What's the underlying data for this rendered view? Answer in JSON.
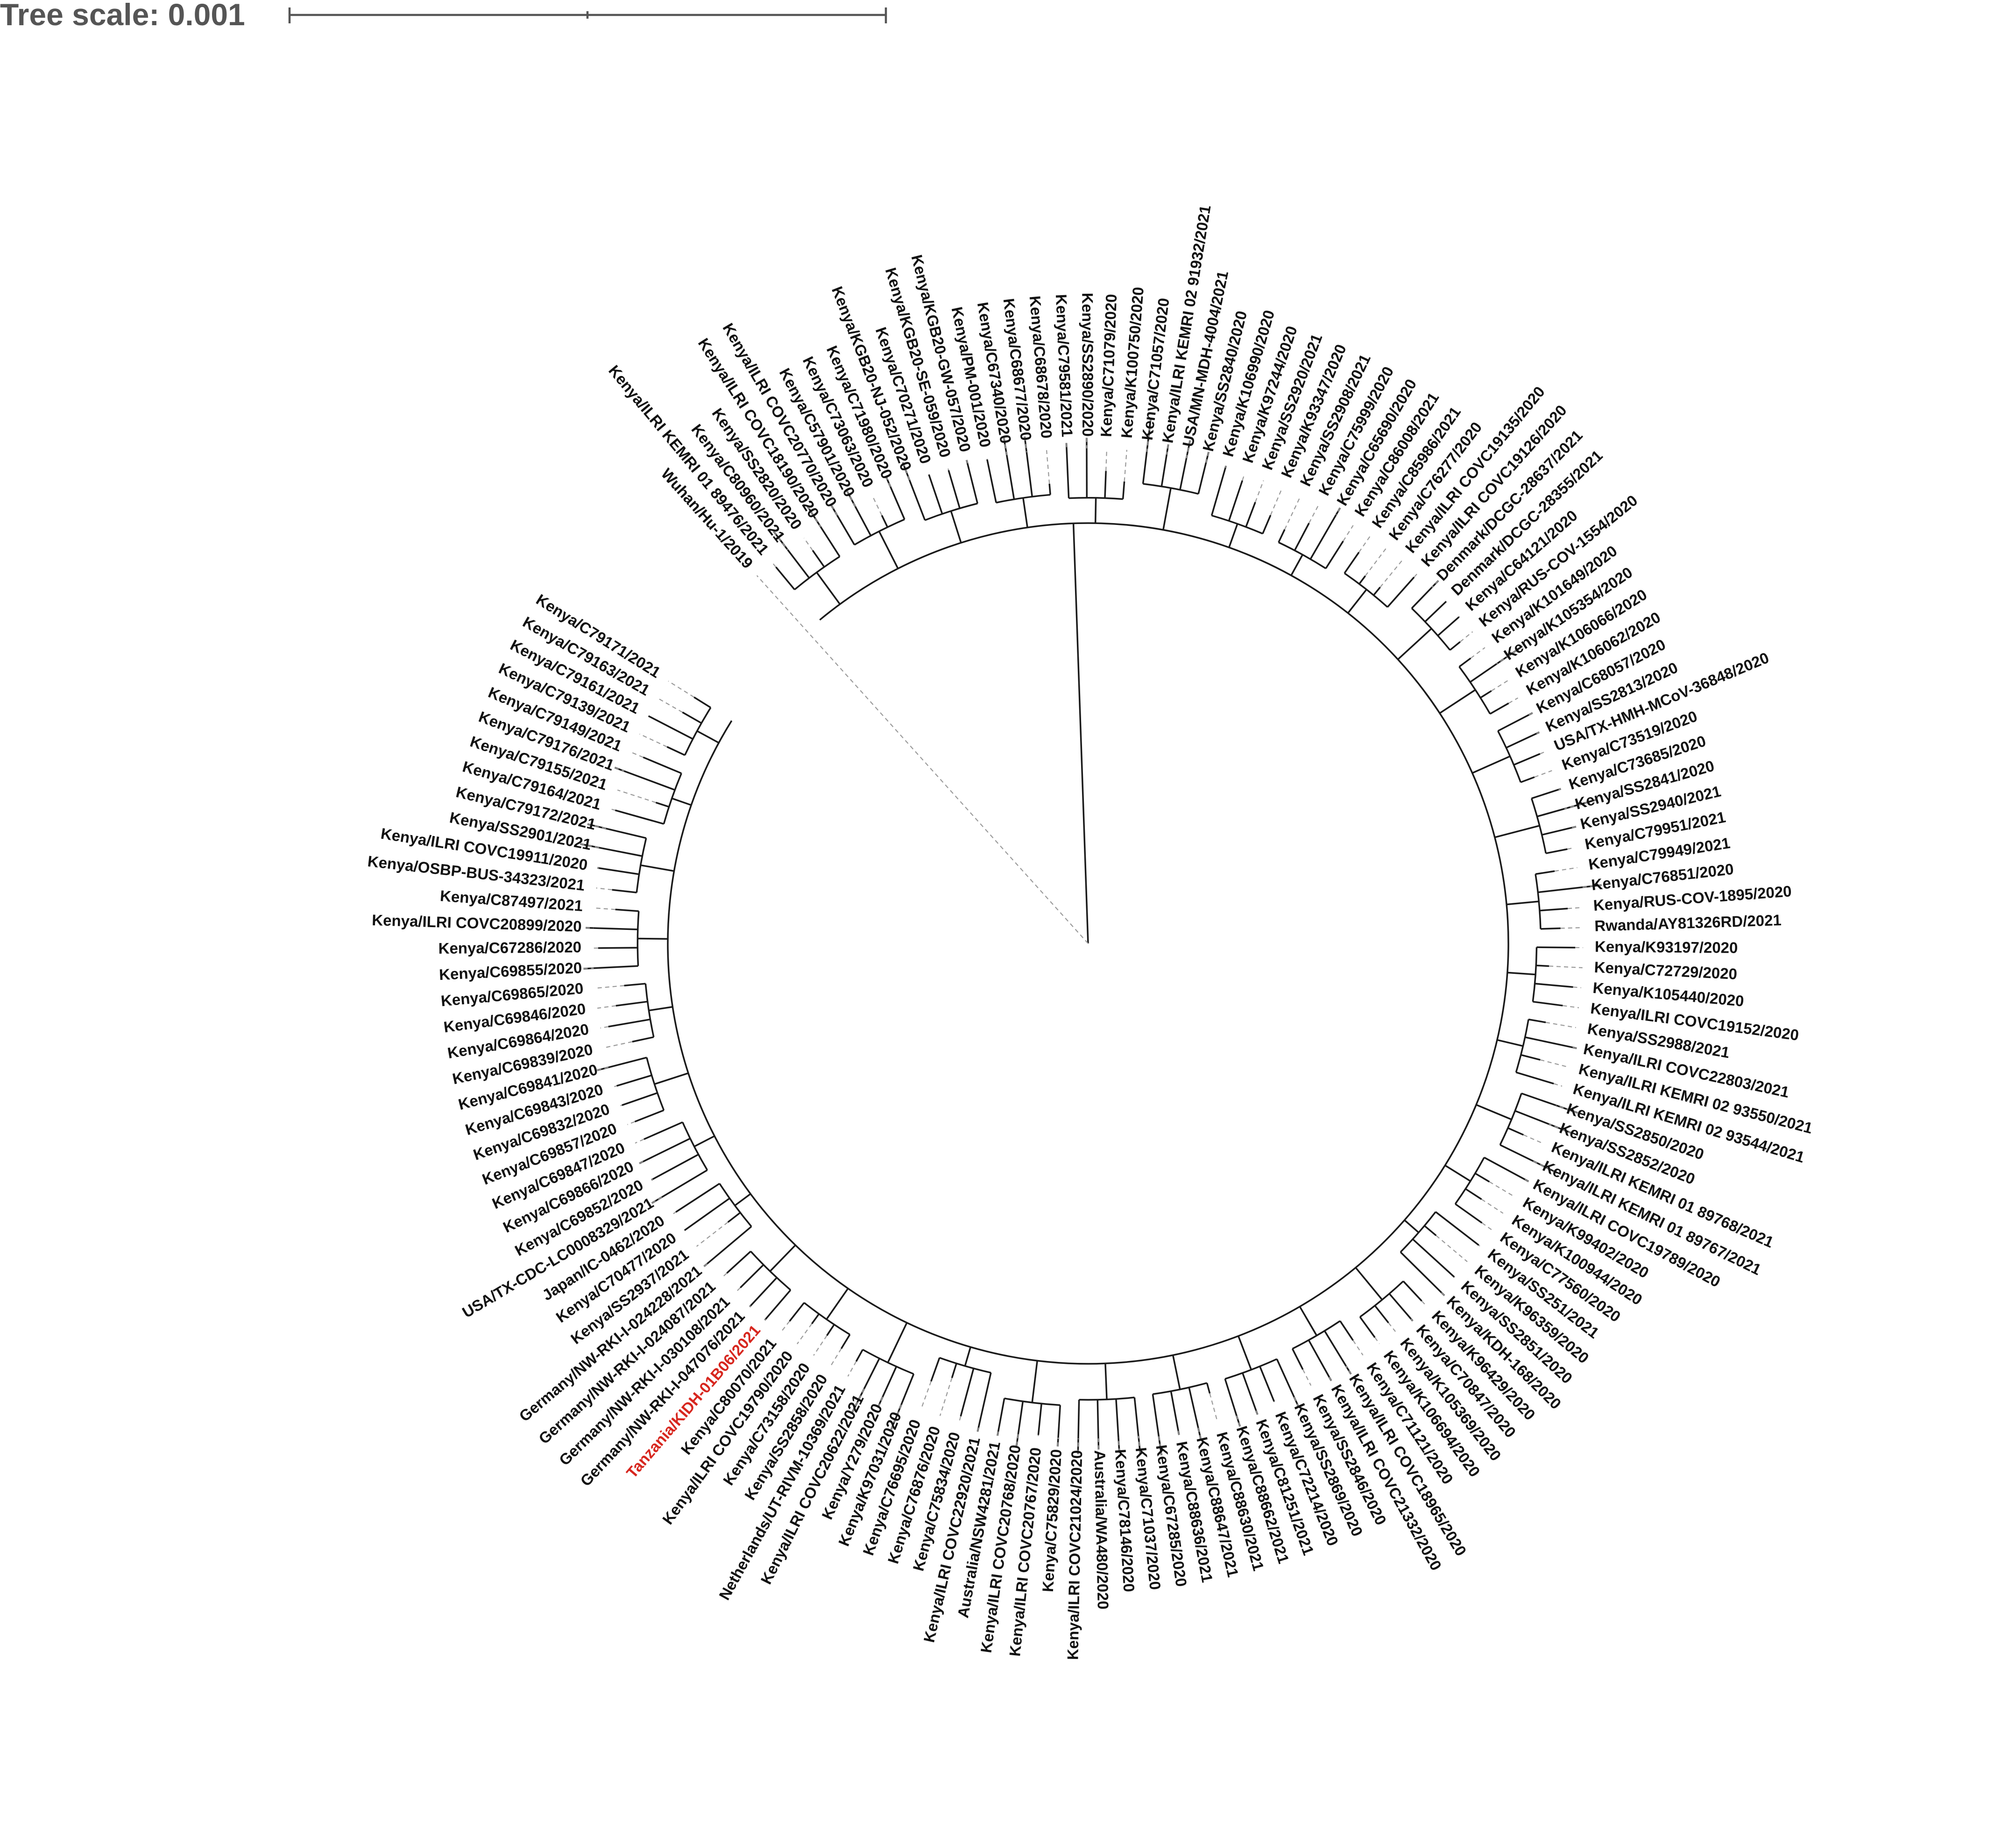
{
  "tree_scale": {
    "label": "Tree scale: 0.001",
    "value": 0.001
  },
  "highlight_color": "#d7261e",
  "highlighted_leaf": "Tanzania/KIDH-01B06/2021",
  "leaves": [
    "Wuhan/Hu-1/2019",
    "Kenya/ILRI KEMRI 01 89476/2021",
    "Kenya/C80960/2021",
    "Kenya/SS2820/2020",
    "Kenya/ILRI COVC18190/2020",
    "Kenya/ILRI COVC20770/2020",
    "Kenya/C57901/2020",
    "Kenya/C73063/2020",
    "Kenya/C71980/2020",
    "Kenya/KGB20-NJ-052/2020",
    "Kenya/C70271/2020",
    "Kenya/KGB20-SE-059/2020",
    "Kenya/KGB20-GW-057/2020",
    "Kenya/PM-001/2020",
    "Kenya/C67340/2020",
    "Kenya/C68677/2020",
    "Kenya/C68678/2020",
    "Kenya/C79581/2021",
    "Kenya/SS2890/2020",
    "Kenya/C71079/2020",
    "Kenya/K100750/2020",
    "Kenya/C71057/2020",
    "Kenya/ILRI KEMRI 02 91932/2021",
    "USA/MN-MDH-4004/2021",
    "Kenya/SS2840/2020",
    "Kenya/K106990/2020",
    "Kenya/K97244/2020",
    "Kenya/SS2920/2021",
    "Kenya/K93347/2020",
    "Kenya/SS2908/2021",
    "Kenya/C75999/2020",
    "Kenya/C65690/2020",
    "Kenya/C86008/2021",
    "Kenya/C85986/2021",
    "Kenya/C76277/2020",
    "Kenya/ILRI COVC19135/2020",
    "Kenya/ILRI COVC19126/2020",
    "Denmark/DCGC-28637/2021",
    "Denmark/DCGC-28355/2021",
    "Kenya/C64121/2020",
    "Kenya/RUS-COV-1554/2020",
    "Kenya/K101649/2020",
    "Kenya/K105354/2020",
    "Kenya/K106066/2020",
    "Kenya/K106062/2020",
    "Kenya/C68057/2020",
    "Kenya/SS2813/2020",
    "USA/TX-HMH-MCoV-36848/2020",
    "Kenya/C73519/2020",
    "Kenya/C73685/2020",
    "Kenya/SS2841/2020",
    "Kenya/SS2940/2021",
    "Kenya/C79951/2021",
    "Kenya/C79949/2021",
    "Kenya/C76851/2020",
    "Kenya/RUS-COV-1895/2020",
    "Rwanda/AY81326RD/2021",
    "Kenya/K93197/2020",
    "Kenya/C72729/2020",
    "Kenya/K105440/2020",
    "Kenya/ILRI COVC19152/2020",
    "Kenya/SS2988/2021",
    "Kenya/ILRI COVC22803/2021",
    "Kenya/ILRI KEMRI 02 93550/2021",
    "Kenya/ILRI KEMRI 02 93544/2021",
    "Kenya/SS2850/2020",
    "Kenya/SS2852/2020",
    "Kenya/ILRI KEMRI 01 89768/2021",
    "Kenya/ILRI KEMRI 01 89767/2021",
    "Kenya/ILRI COVC19789/2020",
    "Kenya/K99402/2020",
    "Kenya/K100944/2020",
    "Kenya/C77560/2020",
    "Kenya/SS251/2021",
    "Kenya/K96359/2020",
    "Kenya/SS2851/2020",
    "Kenya/KDH-168/2020",
    "Kenya/K96429/2020",
    "Kenya/C70847/2020",
    "Kenya/K105369/2020",
    "Kenya/K106694/2020",
    "Kenya/C71121/2020",
    "Kenya/ILRI COVC18965/2020",
    "Kenya/ILRI COVC21332/2020",
    "Kenya/SS2846/2020",
    "Kenya/SS2869/2020",
    "Kenya/C72214/2020",
    "Kenya/C81251/2021",
    "Kenya/C88662/2021",
    "Kenya/C88630/2021",
    "Kenya/C88647/2021",
    "Kenya/C88636/2021",
    "Kenya/C67285/2020",
    "Kenya/C71037/2020",
    "Kenya/C78146/2020",
    "Australia/WA480/2020",
    "Kenya/ILRI COVC21024/2020",
    "Kenya/C75829/2020",
    "Kenya/ILRI COVC20767/2020",
    "Kenya/ILRI COVC20768/2020",
    "Australia/NSW4281/2021",
    "Kenya/ILRI COVC22920/2021",
    "Kenya/C75834/2020",
    "Kenya/C76876/2020",
    "Kenya/C76695/2020",
    "Kenya/K97031/2020",
    "Kenya/Y279/2020",
    "Kenya/ILRI COVC20622/2021",
    "Netherlands/UT-RIVM-10369/2021",
    "Kenya/SS2858/2020",
    "Kenya/C73158/2020",
    "Kenya/ILRI COVC19790/2020",
    "Kenya/C80070/2021",
    "Tanzania/KIDH-01B06/2021",
    "Germany/NW-RKI-I-047076/2021",
    "Germany/NW-RKI-I-030108/2021",
    "Germany/NW-RKI-I-024087/2021",
    "Germany/NW-RKI-I-024228/2021",
    "Kenya/SS2937/2021",
    "Kenya/C70477/2020",
    "Japan/IC-0462/2020",
    "USA/TX-CDC-LC0008329/2021",
    "Kenya/C69852/2020",
    "Kenya/C69866/2020",
    "Kenya/C69847/2020",
    "Kenya/C69857/2020",
    "Kenya/C69832/2020",
    "Kenya/C69843/2020",
    "Kenya/C69841/2020",
    "Kenya/C69839/2020",
    "Kenya/C69864/2020",
    "Kenya/C69846/2020",
    "Kenya/C69865/2020",
    "Kenya/C69855/2020",
    "Kenya/C67286/2020",
    "Kenya/ILRI COVC20899/2020",
    "Kenya/C87497/2021",
    "Kenya/OSBP-BUS-34323/2021",
    "Kenya/ILRI COVC19911/2020",
    "Kenya/SS2901/2021",
    "Kenya/C79172/2021",
    "Kenya/C79164/2021",
    "Kenya/C79155/2021",
    "Kenya/C79176/2021",
    "Kenya/C79149/2021",
    "Kenya/C79139/2021",
    "Kenya/C79161/2021",
    "Kenya/C79163/2021",
    "Kenya/C79171/2021"
  ]
}
